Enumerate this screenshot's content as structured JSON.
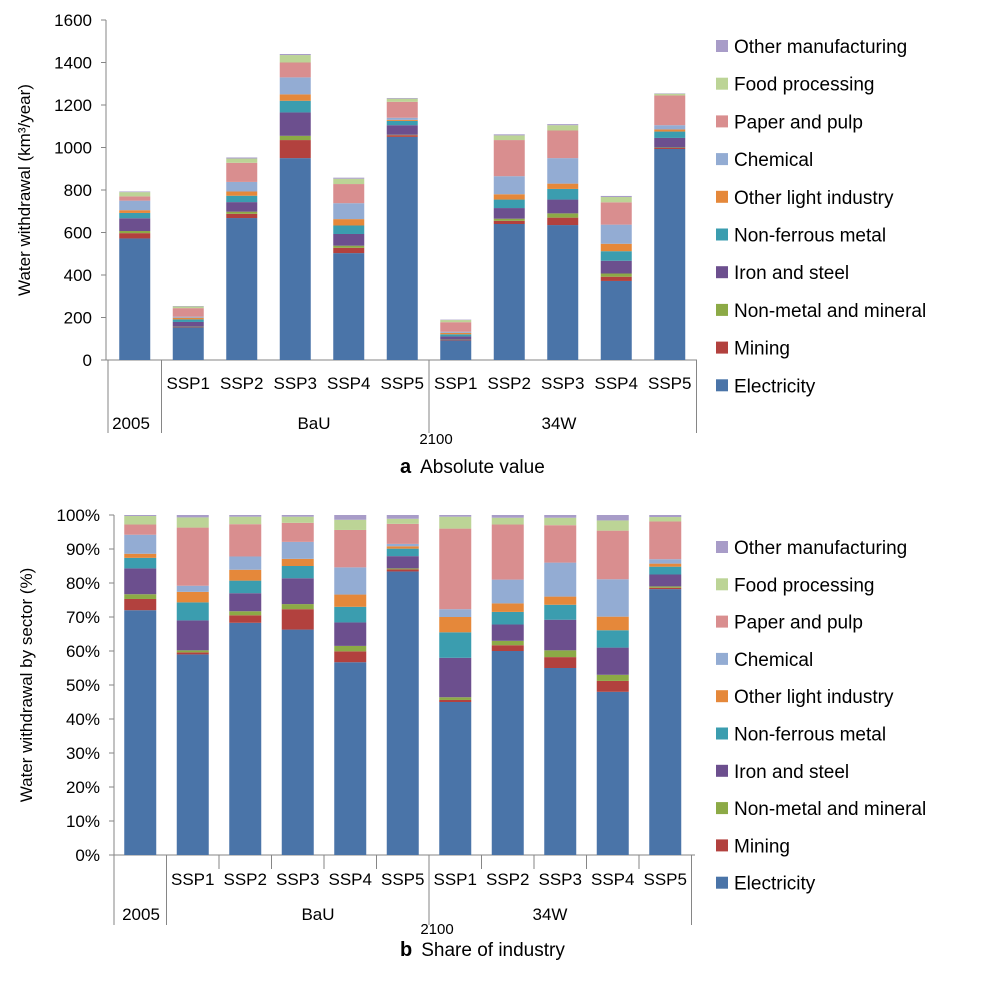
{
  "colors": {
    "Electricity": "#4A74A8",
    "Mining": "#B2413E",
    "Non-metal and mineral": "#8CAA46",
    "Iron and steel": "#6C4F8E",
    "Non-ferrous metal": "#3B9DAF",
    "Other light industry": "#E5883A",
    "Chemical": "#93ACD3",
    "Paper and pulp": "#D98E8F",
    "Food processing": "#BCD496",
    "Other manufacturing": "#A89CC8"
  },
  "chart_data": [
    {
      "type": "bar",
      "stacked": true,
      "caption_letter": "a",
      "caption_text": "Absolute value",
      "ylabel": "Water withdrawal (km³/year)",
      "ylim": [
        0,
        1600
      ],
      "yticks": [
        "0",
        "200",
        "400",
        "600",
        "800",
        "1000",
        "1200",
        "1400",
        "1600"
      ],
      "grid": false,
      "legend_position": "right",
      "categories": [
        "",
        "SSP1",
        "SSP2",
        "SSP3",
        "SSP4",
        "SSP5",
        "SSP1",
        "SSP2",
        "SSP3",
        "SSP4",
        "SSP5"
      ],
      "group_labels": {
        "year_2005": "2005",
        "bau": "BaU",
        "w34": "34W",
        "year_2100": "2100"
      },
      "legend": [
        "Other manufacturing",
        "Food processing",
        "Paper and pulp",
        "Chemical",
        "Other light industry",
        "Non-ferrous metal",
        "Iron and steel",
        "Non-metal and mineral",
        "Mining",
        "Electricity"
      ],
      "series": [
        {
          "name": "Electricity",
          "values": [
            572,
            153,
            668,
            950,
            503,
            1050,
            92,
            640,
            635,
            372,
            993
          ]
        },
        {
          "name": "Mining",
          "values": [
            25,
            2,
            20,
            85,
            25,
            8,
            2,
            15,
            35,
            20,
            5
          ]
        },
        {
          "name": "Non-metal and mineral",
          "values": [
            10,
            2,
            10,
            20,
            10,
            2,
            2,
            10,
            20,
            15,
            2
          ]
        },
        {
          "name": "Iron and steel",
          "values": [
            60,
            22,
            45,
            110,
            55,
            45,
            15,
            50,
            65,
            60,
            45
          ]
        },
        {
          "name": "Non-ferrous metal",
          "values": [
            25,
            12,
            30,
            55,
            40,
            20,
            10,
            40,
            50,
            45,
            30
          ]
        },
        {
          "name": "Other light industry",
          "values": [
            13,
            8,
            20,
            30,
            30,
            5,
            7,
            25,
            25,
            35,
            10
          ]
        },
        {
          "name": "Chemical",
          "values": [
            45,
            5,
            45,
            80,
            75,
            10,
            5,
            85,
            120,
            90,
            20
          ]
        },
        {
          "name": "Paper and pulp",
          "values": [
            20,
            40,
            90,
            70,
            90,
            75,
            45,
            170,
            130,
            105,
            140
          ]
        },
        {
          "name": "Food processing",
          "values": [
            20,
            8,
            20,
            35,
            25,
            15,
            10,
            22,
            25,
            25,
            8
          ]
        },
        {
          "name": "Other manufacturing",
          "values": [
            3,
            2,
            5,
            5,
            5,
            3,
            2,
            5,
            5,
            5,
            2
          ]
        }
      ]
    },
    {
      "type": "bar",
      "stacked": true,
      "caption_letter": "b",
      "caption_text": "Share of industry",
      "ylabel": "Water withdrawal by sector (%)",
      "ylim": [
        0,
        100
      ],
      "yticks": [
        "0%",
        "10%",
        "20%",
        "30%",
        "40%",
        "50%",
        "60%",
        "70%",
        "80%",
        "90%",
        "100%"
      ],
      "grid": false,
      "legend_position": "right",
      "categories": [
        "",
        "SSP1",
        "SSP2",
        "SSP3",
        "SSP4",
        "SSP5",
        "SSP1",
        "SSP2",
        "SSP3",
        "SSP4",
        "SSP5"
      ],
      "group_labels": {
        "year_2005": "2005",
        "bau": "BaU",
        "w34": "34W",
        "year_2100": "2100"
      },
      "legend": [
        "Other manufacturing",
        "Food processing",
        "Paper and pulp",
        "Chemical",
        "Other light industry",
        "Non-ferrous metal",
        "Iron and steel",
        "Non-metal and mineral",
        "Mining",
        "Electricity"
      ],
      "series": [
        {
          "name": "Electricity",
          "values": [
            72,
            59,
            68.3,
            66.3,
            56.7,
            83.4,
            45,
            60,
            55,
            48,
            78.2
          ]
        },
        {
          "name": "Mining",
          "values": [
            3.3,
            0.6,
            2.2,
            6,
            3.2,
            0.6,
            0.6,
            1.7,
            3.2,
            3.2,
            0.4
          ]
        },
        {
          "name": "Non-metal and mineral",
          "values": [
            1.4,
            0.6,
            1.2,
            1.5,
            1.6,
            0.3,
            0.8,
            1.3,
            2,
            1.8,
            0.4
          ]
        },
        {
          "name": "Iron and steel",
          "values": [
            7.6,
            8.8,
            5.3,
            7.6,
            6.9,
            3.6,
            11.6,
            4.8,
            9,
            8,
            3.5
          ]
        },
        {
          "name": "Non-ferrous metal",
          "values": [
            3.1,
            5.3,
            3.7,
            3.6,
            4.6,
            2.2,
            7.5,
            3.7,
            4.4,
            5.1,
            2.3
          ]
        },
        {
          "name": "Other light industry",
          "values": [
            1.2,
            3.1,
            3.2,
            2.1,
            3.6,
            0.7,
            4.5,
            2.5,
            2.4,
            4,
            0.9
          ]
        },
        {
          "name": "Chemical",
          "values": [
            5.6,
            1.8,
            3.9,
            5,
            8,
            0.7,
            2.3,
            7,
            10,
            11,
            1.3
          ]
        },
        {
          "name": "Paper and pulp",
          "values": [
            3,
            17.1,
            9.5,
            5.6,
            11,
            5.9,
            23.7,
            16.2,
            11,
            14.3,
            11.1
          ]
        },
        {
          "name": "Food processing",
          "values": [
            2.5,
            3,
            2.2,
            1.8,
            3,
            1.5,
            3.5,
            2,
            2.2,
            3,
            1.3
          ]
        },
        {
          "name": "Other manufacturing",
          "values": [
            0.3,
            0.7,
            0.5,
            0.5,
            1.4,
            1.1,
            0.5,
            0.8,
            0.8,
            1.6,
            0.6
          ]
        }
      ]
    }
  ]
}
